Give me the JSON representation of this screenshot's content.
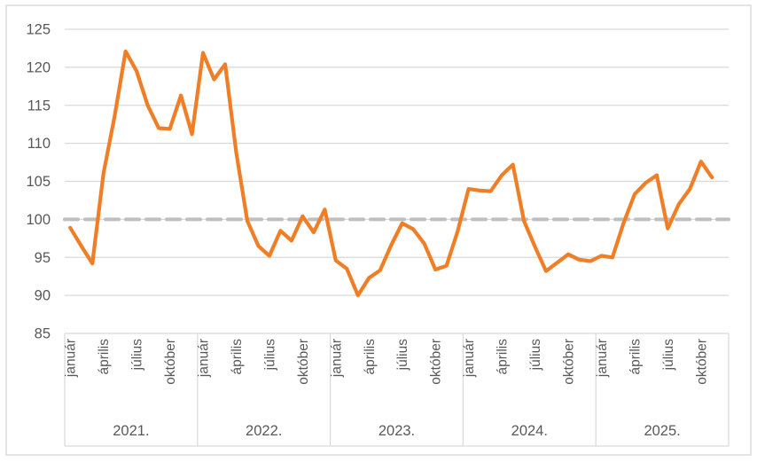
{
  "figure": {
    "background": "#FFFFFF",
    "border_color": "#D9D9D9"
  },
  "colors": {
    "line": "#F07E26",
    "grid": "#D9D9D9",
    "axis_line": "#D9D9D9",
    "reference_line": "#BFBFBF",
    "text": "#595959"
  },
  "chart_data": {
    "type": "line",
    "title": "",
    "legend": "none",
    "grid": "horizontal",
    "ylim": [
      85,
      125
    ],
    "yticks": [
      125,
      120,
      115,
      110,
      105,
      100,
      95,
      90,
      85
    ],
    "reference_line": {
      "value": 100,
      "style": "dashed"
    },
    "x_axis": {
      "months_per_year": 12,
      "month_tick_labels": [
        "január",
        "április",
        "július",
        "október"
      ],
      "month_tick_positions": [
        0,
        3,
        6,
        9
      ],
      "year_labels": [
        "2021.",
        "2022.",
        "2023.",
        "2024.",
        "2025."
      ]
    },
    "series_by_year": [
      {
        "year": "2021.",
        "values": [
          98.9,
          96.5,
          94.2,
          106.0,
          113.5,
          122.1,
          119.5,
          115.0,
          112.0,
          111.9,
          116.3,
          111.2
        ]
      },
      {
        "year": "2022.",
        "values": [
          121.9,
          118.4,
          120.4,
          108.8,
          99.8,
          96.5,
          95.2,
          98.5,
          97.2,
          100.4,
          98.3,
          101.3
        ]
      },
      {
        "year": "2023.",
        "values": [
          94.6,
          93.5,
          90.0,
          92.3,
          93.3,
          96.6,
          99.5,
          98.7,
          96.8,
          93.4,
          93.9,
          98.4
        ]
      },
      {
        "year": "2024.",
        "values": [
          104.0,
          103.8,
          103.7,
          105.8,
          107.2,
          99.8,
          96.4,
          93.2,
          94.3,
          95.4,
          94.7,
          94.5
        ]
      },
      {
        "year": "2025.",
        "values": [
          95.2,
          95.0,
          99.5,
          103.3,
          104.8,
          105.8,
          98.8,
          102.0,
          104.0,
          107.6,
          105.5
        ]
      }
    ]
  }
}
